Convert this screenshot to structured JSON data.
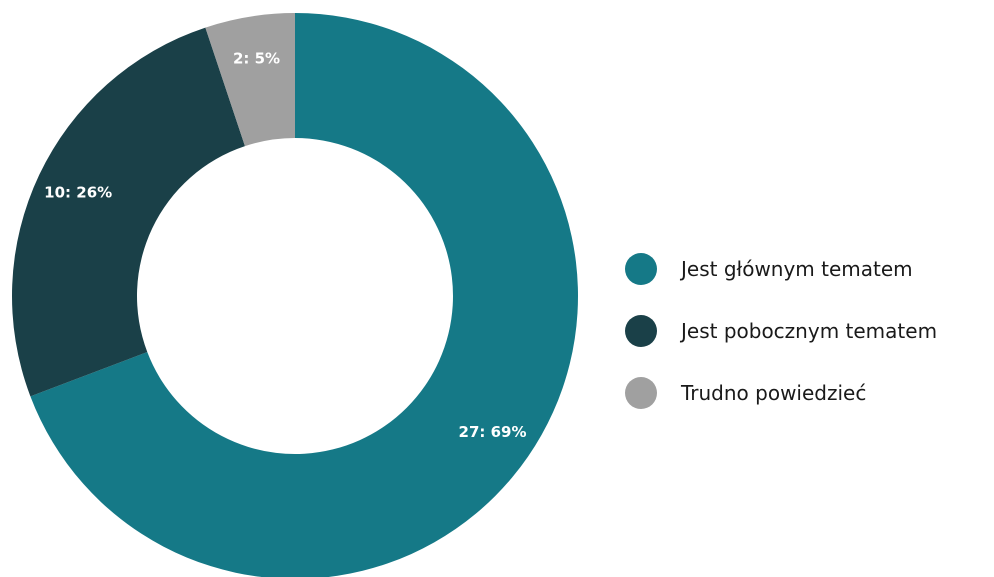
{
  "chart_data": {
    "type": "pie",
    "categories": [
      "Jest głównym tematem",
      "Jest pobocznym tematem",
      "Trudno powiedzieć"
    ],
    "values": [
      27,
      10,
      2
    ],
    "percentages": [
      69,
      26,
      5
    ],
    "data_labels": [
      "27: 69%",
      "10: 26%",
      "2: 5%"
    ],
    "colors": [
      "#157987",
      "#1a4048",
      "#a0a0a0"
    ],
    "donut": true,
    "legend_position": "right"
  }
}
